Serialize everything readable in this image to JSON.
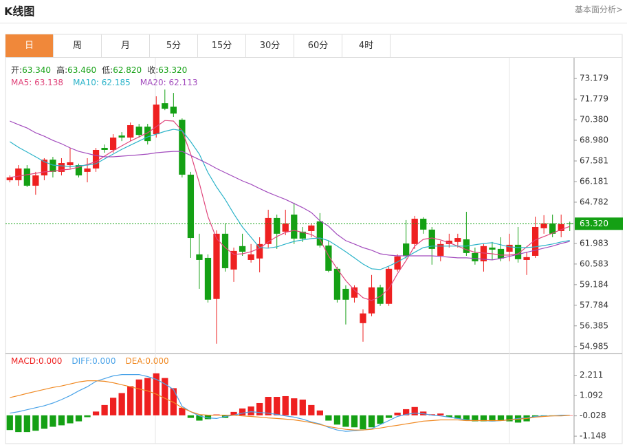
{
  "header": {
    "title": "K线图",
    "link": "基本面分析>"
  },
  "tabs": [
    "日",
    "周",
    "月",
    "5分",
    "15分",
    "30分",
    "60分",
    "4时"
  ],
  "active_tab": 0,
  "chart_data": [
    {
      "type": "candlestick",
      "info": [
        {
          "label": "开",
          "value": "63.340"
        },
        {
          "label": "高",
          "value": "63.460"
        },
        {
          "label": "低",
          "value": "62.820"
        },
        {
          "label": "收",
          "value": "63.320"
        }
      ],
      "info_separator": ":",
      "legend_separator": ": ",
      "up_color": "#ee2020",
      "down_color": "#14a014",
      "open": [
        66.27,
        66.27,
        67.07,
        65.9,
        66.6,
        67.67,
        66.84,
        67.3,
        67.3,
        66.84,
        67.07,
        68.47,
        68.33,
        69.31,
        69.17,
        69.91,
        69.91,
        69.4,
        71.5,
        71.27,
        70.38,
        66.65,
        61.24,
        61.0,
        58.21,
        62.64,
        60.21,
        61.8,
        60.86,
        60.96,
        61.94,
        63.71,
        62.78,
        63.94,
        62.78,
        62.82,
        63.48,
        61.84,
        60.26,
        58.9,
        58.3,
        56.57,
        57.23,
        59.0,
        57.88,
        60.21,
        61.98,
        61.94,
        63.66,
        62.92,
        61.14,
        61.94,
        62.08,
        62.26,
        61.33,
        60.77,
        61.7,
        61.61,
        61.42,
        61.89,
        60.86,
        61.14,
        63.01,
        63.34,
        62.82,
        63.34
      ],
      "high": [
        66.6,
        67.3,
        67.3,
        66.84,
        67.77,
        67.86,
        67.77,
        68.47,
        67.4,
        67.77,
        68.47,
        68.7,
        69.4,
        69.54,
        70.19,
        70.1,
        70.1,
        71.97,
        72.43,
        72.2,
        70.47,
        66.84,
        62.64,
        61.24,
        62.87,
        63.34,
        61.7,
        62.64,
        61.94,
        62.4,
        64.27,
        63.94,
        64.27,
        64.74,
        63.1,
        63.34,
        64.04,
        62.17,
        60.4,
        59.14,
        59.14,
        57.51,
        59.84,
        59.18,
        60.4,
        61.24,
        63.57,
        63.85,
        63.76,
        63.1,
        62.17,
        62.64,
        62.64,
        64.13,
        61.7,
        61.94,
        62.08,
        62.4,
        62.64,
        63.1,
        61.42,
        63.8,
        63.9,
        63.94,
        63.94,
        63.46
      ],
      "low": [
        66.13,
        65.9,
        65.81,
        65.29,
        66.27,
        66.46,
        66.6,
        67.07,
        66.46,
        66.13,
        66.84,
        68.14,
        68.14,
        68.93,
        68.93,
        69.17,
        68.7,
        69.17,
        71.03,
        70.57,
        66.46,
        61.0,
        58.9,
        57.97,
        55.17,
        60.07,
        59.37,
        61.14,
        60.68,
        60.02,
        61.7,
        61.61,
        62.54,
        61.94,
        62.08,
        62.4,
        61.7,
        60.02,
        57.97,
        56.48,
        57.97,
        55.31,
        57.04,
        57.74,
        57.74,
        60.07,
        60.96,
        61.61,
        62.64,
        60.54,
        60.77,
        61.7,
        61.7,
        61.14,
        60.54,
        60.07,
        60.86,
        60.77,
        60.77,
        60.68,
        59.84,
        61.0,
        62.64,
        62.4,
        62.4,
        62.82
      ],
      "close": [
        66.46,
        67.07,
        65.9,
        66.6,
        67.67,
        66.84,
        67.44,
        67.49,
        66.6,
        67.07,
        68.33,
        68.33,
        69.17,
        69.17,
        70.01,
        69.35,
        68.93,
        71.41,
        71.13,
        70.8,
        66.65,
        62.35,
        60.86,
        58.16,
        62.64,
        60.3,
        61.47,
        61.42,
        61.24,
        61.94,
        63.71,
        62.64,
        63.34,
        62.31,
        62.31,
        63.2,
        61.84,
        60.12,
        58.16,
        58.16,
        59.0,
        57.23,
        59.0,
        57.88,
        60.26,
        61.1,
        61.14,
        63.66,
        62.92,
        61.61,
        61.94,
        62.17,
        62.35,
        61.33,
        60.77,
        61.8,
        61.56,
        60.96,
        61.89,
        60.91,
        61.05,
        63.1,
        63.34,
        62.64,
        63.29,
        63.32
      ],
      "series": [
        {
          "name": "MA5",
          "value_label": "63.138",
          "color": "#e0457b",
          "values": [
            66.46,
            66.55,
            66.65,
            66.74,
            66.84,
            66.88,
            66.97,
            67.02,
            67.16,
            67.35,
            67.53,
            67.91,
            68.28,
            68.61,
            68.93,
            69.21,
            69.49,
            69.91,
            70.33,
            70.29,
            69.63,
            68.05,
            66.09,
            63.8,
            62.31,
            61.7,
            61.24,
            61.28,
            61.42,
            61.66,
            62.08,
            62.45,
            62.73,
            62.87,
            62.73,
            62.59,
            62.26,
            61.14,
            60.26,
            59.46,
            58.81,
            58.3,
            58.11,
            58.39,
            58.9,
            59.93,
            60.82,
            61.8,
            62.26,
            62.35,
            62.22,
            62.03,
            61.8,
            61.56,
            61.38,
            61.33,
            61.28,
            61.19,
            61.19,
            61.28,
            61.75,
            62.22,
            62.45,
            62.68,
            62.92,
            63.138
          ]
        },
        {
          "name": "MA10",
          "value_label": "62.185",
          "color": "#2bb3c9",
          "values": [
            68.89,
            68.51,
            68.19,
            67.86,
            67.53,
            67.3,
            67.25,
            67.21,
            67.25,
            67.3,
            67.39,
            67.72,
            68.05,
            68.37,
            68.65,
            68.93,
            69.21,
            69.4,
            69.59,
            69.73,
            69.63,
            68.89,
            68.05,
            66.79,
            65.81,
            64.97,
            63.99,
            63.1,
            62.4,
            61.7,
            61.66,
            61.75,
            61.94,
            62.12,
            62.22,
            62.31,
            62.35,
            62.17,
            61.8,
            61.42,
            61.0,
            60.58,
            60.26,
            60.21,
            60.44,
            60.72,
            61.05,
            61.38,
            61.7,
            61.8,
            61.8,
            61.8,
            61.8,
            61.8,
            61.89,
            61.98,
            62.03,
            61.89,
            61.75,
            61.7,
            61.7,
            61.75,
            61.84,
            61.94,
            62.08,
            62.185
          ]
        },
        {
          "name": "MA20",
          "value_label": "62.113",
          "color": "#a24bbd",
          "values": [
            70.29,
            70.05,
            69.82,
            69.49,
            69.26,
            68.98,
            68.75,
            68.47,
            68.23,
            68.09,
            67.95,
            67.86,
            67.86,
            67.91,
            67.95,
            68.0,
            68.05,
            68.14,
            68.19,
            68.23,
            68.23,
            67.95,
            67.67,
            67.39,
            67.07,
            66.79,
            66.51,
            66.23,
            66.0,
            65.71,
            65.44,
            65.2,
            64.97,
            64.69,
            64.41,
            64.08,
            63.52,
            63.15,
            62.59,
            62.17,
            61.94,
            61.7,
            61.52,
            61.28,
            61.19,
            61.14,
            61.14,
            61.14,
            61.14,
            61.14,
            61.1,
            61.05,
            61.0,
            61.0,
            60.96,
            60.91,
            60.86,
            60.96,
            61.1,
            61.24,
            61.38,
            61.52,
            61.66,
            61.8,
            61.98,
            62.113
          ]
        }
      ],
      "last_price": {
        "value": 63.32,
        "label": "63.320"
      },
      "ylim": [
        54.6,
        74.4
      ],
      "yticks": [
        73.179,
        71.779,
        {
          "value": 70.38,
          "label": "70.380"
        },
        {
          "value": 68.98,
          "label": "68.980"
        },
        67.581,
        66.181,
        64.782,
        61.983,
        60.583,
        59.184,
        57.784,
        56.385,
        54.985
      ]
    },
    {
      "type": "macd",
      "legend_separator": ":",
      "series": [
        {
          "name": "MACD",
          "value_label": "0.000",
          "color": "#ee2020",
          "down_color": "#14a014",
          "values": [
            -0.81,
            -0.92,
            -0.92,
            -0.85,
            -0.74,
            -0.63,
            -0.55,
            -0.44,
            -0.33,
            -0.1,
            0.21,
            0.57,
            0.97,
            1.23,
            1.61,
            1.98,
            2.06,
            2.32,
            2.06,
            1.5,
            0.42,
            -0.14,
            -0.29,
            -0.21,
            0.05,
            -0.14,
            0.19,
            0.38,
            0.49,
            0.68,
            1.02,
            1.02,
            1.06,
            0.94,
            0.87,
            0.57,
            0.27,
            -0.29,
            -0.51,
            -0.63,
            -0.66,
            -0.77,
            -0.66,
            -0.47,
            -0.14,
            0.15,
            0.34,
            0.46,
            0.21,
            0.06,
            0.1,
            -0.1,
            -0.18,
            -0.29,
            -0.33,
            -0.33,
            -0.33,
            -0.29,
            -0.33,
            -0.4,
            -0.33,
            -0.08,
            -0.05,
            -0.03,
            -0.02,
            0
          ]
        },
        {
          "name": "DIFF",
          "value_label": "0.000",
          "color": "#4aa3e8",
          "values": [
            0.12,
            0.2,
            0.31,
            0.42,
            0.53,
            0.68,
            0.87,
            1.09,
            1.35,
            1.58,
            1.88,
            2.03,
            2.18,
            2.25,
            2.25,
            2.25,
            2.14,
            1.99,
            1.73,
            1.43,
            0.5,
            0.2,
            -0.03,
            -0.14,
            -0.17,
            -0.06,
            0.01,
            0.12,
            0.2,
            0.16,
            0.12,
            0.05,
            -0.03,
            -0.1,
            -0.21,
            -0.36,
            -0.47,
            -0.66,
            -0.81,
            -0.88,
            -0.85,
            -0.81,
            -0.74,
            -0.51,
            -0.29,
            -0.06,
            0.05,
            0.12,
            0.09,
            0.01,
            -0.03,
            -0.1,
            -0.17,
            -0.25,
            -0.29,
            -0.29,
            -0.32,
            -0.29,
            -0.25,
            -0.17,
            -0.14,
            -0.06,
            -0.03,
            -0.03,
            0.01,
            0
          ]
        },
        {
          "name": "DEA",
          "value_label": "0.000",
          "color": "#f08a24",
          "values": [
            0.98,
            1.09,
            1.21,
            1.32,
            1.43,
            1.54,
            1.62,
            1.73,
            1.84,
            1.91,
            1.91,
            1.88,
            1.8,
            1.69,
            1.58,
            1.46,
            1.35,
            1.17,
            0.94,
            0.72,
            0.42,
            0.2,
            0.05,
            0.01,
            0.01,
            0.01,
            0.01,
            -0.03,
            -0.06,
            -0.1,
            -0.14,
            -0.17,
            -0.21,
            -0.25,
            -0.32,
            -0.4,
            -0.51,
            -0.62,
            -0.7,
            -0.77,
            -0.81,
            -0.81,
            -0.77,
            -0.7,
            -0.62,
            -0.55,
            -0.47,
            -0.4,
            -0.32,
            -0.29,
            -0.25,
            -0.25,
            -0.25,
            -0.29,
            -0.29,
            -0.29,
            -0.29,
            -0.29,
            -0.25,
            -0.21,
            -0.17,
            -0.1,
            -0.06,
            -0.03,
            -0.03,
            0
          ]
        }
      ],
      "ylim": [
        -1.56,
        3.26
      ],
      "yticks": [
        2.211,
        1.092,
        -0.028,
        -1.148
      ]
    }
  ]
}
